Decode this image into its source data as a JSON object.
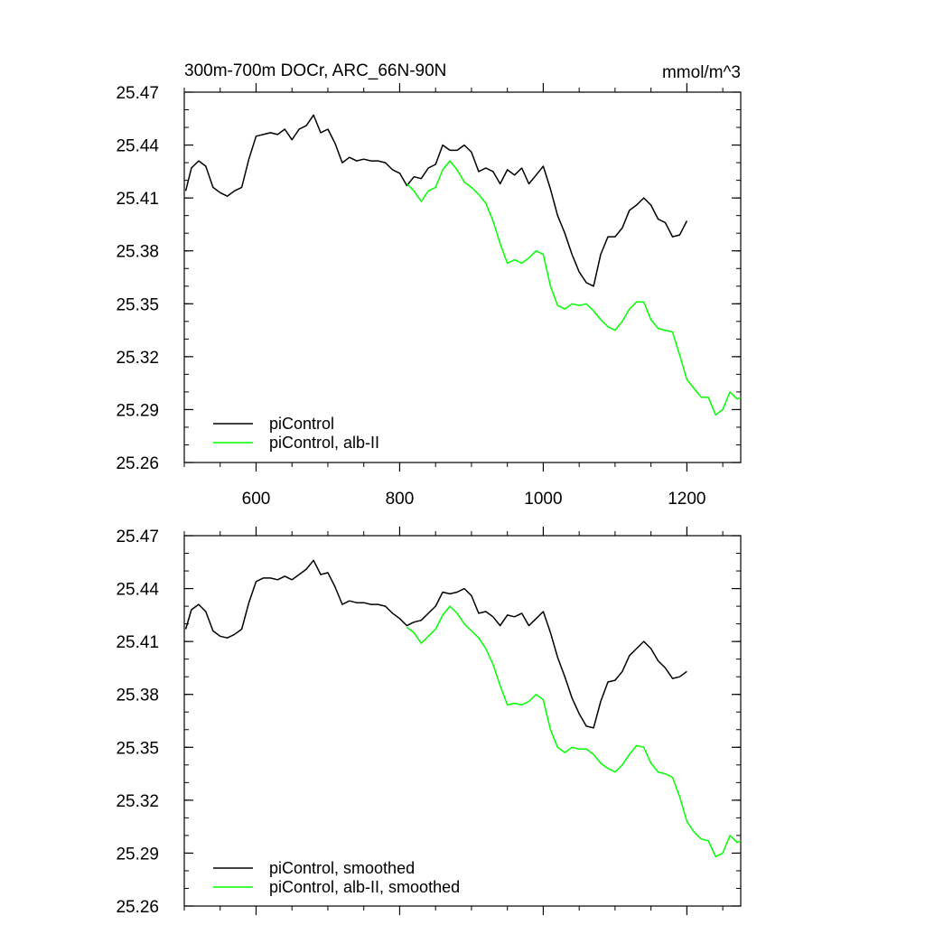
{
  "chart_data": [
    {
      "type": "line",
      "title": "300m-700m DOCr, ARC_66N-90N",
      "units_label": "mmol/m^3",
      "xlim": [
        500,
        1275
      ],
      "ylim": [
        25.26,
        25.47
      ],
      "x_ticks": [
        600,
        800,
        1000,
        1200
      ],
      "x_tick_labels": [
        "600",
        "800",
        "1000",
        "1200"
      ],
      "y_ticks": [
        25.26,
        25.29,
        25.32,
        25.35,
        25.38,
        25.41,
        25.44,
        25.47
      ],
      "y_tick_labels": [
        "25.26",
        "25.29",
        "25.32",
        "25.35",
        "25.38",
        "25.41",
        "25.44",
        "25.47"
      ],
      "show_x_labels": true,
      "grid": false,
      "legend_position": "bottom-left",
      "series": [
        {
          "name": "piControl",
          "color": "#000000",
          "x": [
            502,
            510,
            520,
            530,
            540,
            550,
            560,
            570,
            580,
            590,
            600,
            610,
            620,
            630,
            640,
            650,
            660,
            670,
            680,
            690,
            700,
            710,
            720,
            730,
            740,
            750,
            760,
            770,
            780,
            790,
            800,
            810,
            820,
            830,
            840,
            850,
            860,
            870,
            880,
            890,
            900,
            910,
            920,
            930,
            940,
            950,
            960,
            970,
            980,
            990,
            1000,
            1010,
            1020,
            1030,
            1040,
            1050,
            1060,
            1070,
            1080,
            1090,
            1100,
            1110,
            1120,
            1130,
            1140,
            1150,
            1160,
            1170,
            1180,
            1190,
            1200
          ],
          "y": [
            25.414,
            25.427,
            25.431,
            25.428,
            25.416,
            25.413,
            25.411,
            25.414,
            25.416,
            25.432,
            25.445,
            25.446,
            25.447,
            25.446,
            25.449,
            25.443,
            25.449,
            25.451,
            25.457,
            25.447,
            25.449,
            25.441,
            25.43,
            25.433,
            25.431,
            25.432,
            25.431,
            25.431,
            25.43,
            25.426,
            25.424,
            25.417,
            25.422,
            25.421,
            25.427,
            25.429,
            25.44,
            25.437,
            25.437,
            25.44,
            25.436,
            25.425,
            25.427,
            25.425,
            25.418,
            25.426,
            25.423,
            25.427,
            25.418,
            25.423,
            25.428,
            25.415,
            25.4,
            25.39,
            25.378,
            25.368,
            25.362,
            25.36,
            25.378,
            25.388,
            25.388,
            25.393,
            25.403,
            25.406,
            25.41,
            25.406,
            25.398,
            25.396,
            25.388,
            25.389,
            25.397
          ]
        },
        {
          "name": "piControl, alb-II",
          "color": "#00ff00",
          "x": [
            810,
            820,
            830,
            840,
            850,
            860,
            870,
            880,
            890,
            900,
            910,
            920,
            930,
            940,
            950,
            960,
            970,
            980,
            990,
            1000,
            1010,
            1020,
            1030,
            1040,
            1050,
            1060,
            1070,
            1080,
            1090,
            1100,
            1110,
            1120,
            1130,
            1140,
            1150,
            1160,
            1170,
            1180,
            1190,
            1200,
            1210,
            1220,
            1230,
            1240,
            1250,
            1260,
            1270,
            1275
          ],
          "y": [
            25.418,
            25.414,
            25.408,
            25.414,
            25.416,
            25.426,
            25.431,
            25.426,
            25.419,
            25.416,
            25.412,
            25.407,
            25.397,
            25.384,
            25.373,
            25.375,
            25.373,
            25.376,
            25.38,
            25.378,
            25.36,
            25.349,
            25.347,
            25.35,
            25.349,
            25.35,
            25.346,
            25.341,
            25.337,
            25.335,
            25.34,
            25.347,
            25.351,
            25.351,
            25.341,
            25.336,
            25.335,
            25.334,
            25.321,
            25.307,
            25.302,
            25.297,
            25.297,
            25.287,
            25.29,
            25.3,
            25.296,
            25.297
          ]
        }
      ]
    },
    {
      "type": "line",
      "xlim": [
        500,
        1275
      ],
      "ylim": [
        25.26,
        25.47
      ],
      "x_ticks": [
        600,
        800,
        1000,
        1200
      ],
      "y_ticks": [
        25.26,
        25.29,
        25.32,
        25.35,
        25.38,
        25.41,
        25.44,
        25.47
      ],
      "y_tick_labels": [
        "25.26",
        "25.29",
        "25.32",
        "25.35",
        "25.38",
        "25.41",
        "25.44",
        "25.47"
      ],
      "show_x_labels": false,
      "grid": false,
      "legend_position": "bottom-left",
      "series": [
        {
          "name": "piControl, smoothed",
          "color": "#000000",
          "x": [
            502,
            510,
            520,
            530,
            540,
            550,
            560,
            570,
            580,
            590,
            600,
            610,
            620,
            630,
            640,
            650,
            660,
            670,
            680,
            690,
            700,
            710,
            720,
            730,
            740,
            750,
            760,
            770,
            780,
            790,
            800,
            810,
            820,
            830,
            840,
            850,
            860,
            870,
            880,
            890,
            900,
            910,
            920,
            930,
            940,
            950,
            960,
            970,
            980,
            990,
            1000,
            1010,
            1020,
            1030,
            1040,
            1050,
            1060,
            1070,
            1080,
            1090,
            1100,
            1110,
            1120,
            1130,
            1140,
            1150,
            1160,
            1170,
            1180,
            1190,
            1200
          ],
          "y": [
            25.417,
            25.428,
            25.431,
            25.427,
            25.416,
            25.413,
            25.412,
            25.414,
            25.417,
            25.432,
            25.444,
            25.446,
            25.446,
            25.445,
            25.447,
            25.445,
            25.448,
            25.451,
            25.456,
            25.448,
            25.449,
            25.441,
            25.431,
            25.433,
            25.432,
            25.432,
            25.431,
            25.431,
            25.43,
            25.426,
            25.423,
            25.419,
            25.421,
            25.422,
            25.426,
            25.43,
            25.438,
            25.437,
            25.438,
            25.44,
            25.436,
            25.426,
            25.427,
            25.424,
            25.419,
            25.425,
            25.424,
            25.426,
            25.419,
            25.423,
            25.427,
            25.415,
            25.401,
            25.39,
            25.378,
            25.369,
            25.362,
            25.361,
            25.376,
            25.387,
            25.388,
            25.393,
            25.402,
            25.406,
            25.41,
            25.406,
            25.399,
            25.395,
            25.389,
            25.39,
            25.393
          ]
        },
        {
          "name": "piControl, alb-II, smoothed",
          "color": "#00ff00",
          "x": [
            810,
            820,
            830,
            840,
            850,
            860,
            870,
            880,
            890,
            900,
            910,
            920,
            930,
            940,
            950,
            960,
            970,
            980,
            990,
            1000,
            1010,
            1020,
            1030,
            1040,
            1050,
            1060,
            1070,
            1080,
            1090,
            1100,
            1110,
            1120,
            1130,
            1140,
            1150,
            1160,
            1170,
            1180,
            1190,
            1200,
            1210,
            1220,
            1230,
            1240,
            1250,
            1260,
            1270,
            1275
          ],
          "y": [
            25.418,
            25.415,
            25.409,
            25.413,
            25.417,
            25.425,
            25.43,
            25.426,
            25.42,
            25.416,
            25.412,
            25.406,
            25.397,
            25.385,
            25.374,
            25.375,
            25.374,
            25.376,
            25.38,
            25.377,
            25.36,
            25.35,
            25.347,
            25.35,
            25.349,
            25.349,
            25.346,
            25.341,
            25.338,
            25.336,
            25.34,
            25.346,
            25.351,
            25.35,
            25.341,
            25.336,
            25.335,
            25.333,
            25.322,
            25.308,
            25.302,
            25.298,
            25.297,
            25.288,
            25.29,
            25.3,
            25.296,
            25.297
          ]
        }
      ]
    }
  ]
}
